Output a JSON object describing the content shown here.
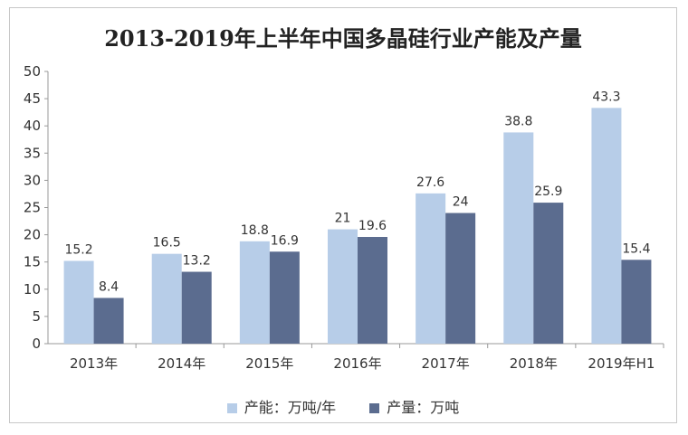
{
  "chart_data": {
    "type": "bar",
    "title": "2013-2019年上半年中国多晶硅行业产能及产量",
    "categories": [
      "2013年",
      "2014年",
      "2015年",
      "2016年",
      "2017年",
      "2018年",
      "2019年H1"
    ],
    "series": [
      {
        "name": "产能：万吨/年",
        "color": "#b7cde8",
        "values": [
          15.2,
          16.5,
          18.8,
          21,
          27.6,
          38.8,
          43.3
        ]
      },
      {
        "name": "产量：万吨",
        "color": "#5b6c8f",
        "values": [
          8.4,
          13.2,
          16.9,
          19.6,
          24,
          25.9,
          15.4
        ]
      }
    ],
    "ylim": [
      0,
      50
    ],
    "yticks": [
      0,
      5,
      10,
      15,
      20,
      25,
      30,
      35,
      40,
      45,
      50
    ],
    "grid": false,
    "legend": "bottom"
  }
}
